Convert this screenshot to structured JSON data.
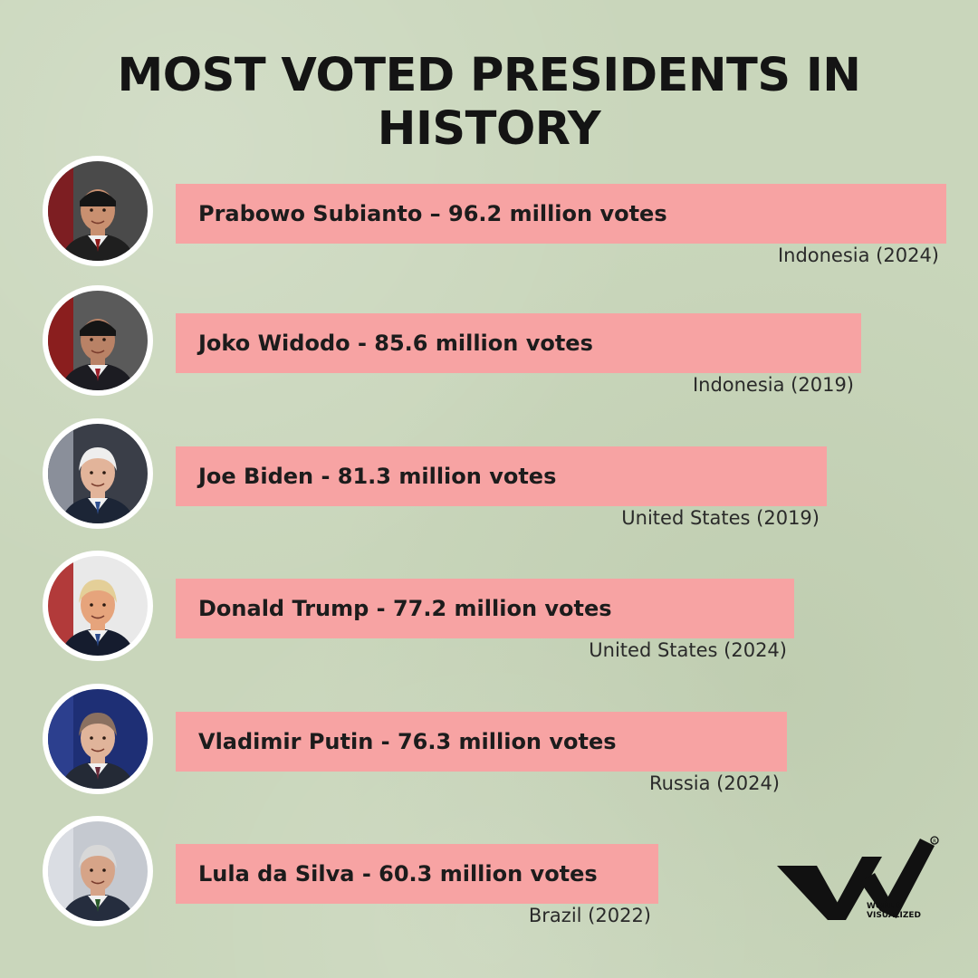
{
  "title": "MOST VOTED PRESIDENTS IN HISTORY",
  "chart_data": {
    "type": "bar",
    "title": "MOST VOTED PRESIDENTS IN HISTORY",
    "unit": "million votes",
    "categories": [
      "Prabowo Subianto",
      "Joko Widodo",
      "Joe Biden",
      "Donald Trump",
      "Vladimir Putin",
      "Lula da Silva"
    ],
    "values": [
      96.2,
      85.6,
      81.3,
      77.2,
      76.3,
      60.3
    ],
    "bars": [
      {
        "name": "Prabowo Subianto",
        "value": 96.2,
        "label": "Prabowo Subianto – 96.2 million votes",
        "country": "Indonesia (2024)"
      },
      {
        "name": "Joko Widodo",
        "value": 85.6,
        "label": "Joko Widodo - 85.6 million votes",
        "country": "Indonesia (2019)"
      },
      {
        "name": "Joe Biden",
        "value": 81.3,
        "label": "Joe Biden - 81.3 million votes",
        "country": "United States (2019)"
      },
      {
        "name": "Donald Trump",
        "value": 77.2,
        "label": "Donald Trump - 77.2 million votes",
        "country": "United States (2024)"
      },
      {
        "name": "Vladimir Putin",
        "value": 76.3,
        "label": "Vladimir Putin - 76.3 million votes",
        "country": "Russia (2024)"
      },
      {
        "name": "Lula da Silva",
        "value": 60.3,
        "label": "Lula da Silva - 60.3 million votes",
        "country": "Brazil (2022)"
      }
    ],
    "bar_color": "#f7a3a3"
  },
  "logo": {
    "line1": "WORLD",
    "line2": "VISUALIZED",
    "icon": "world-visualized-logo"
  }
}
